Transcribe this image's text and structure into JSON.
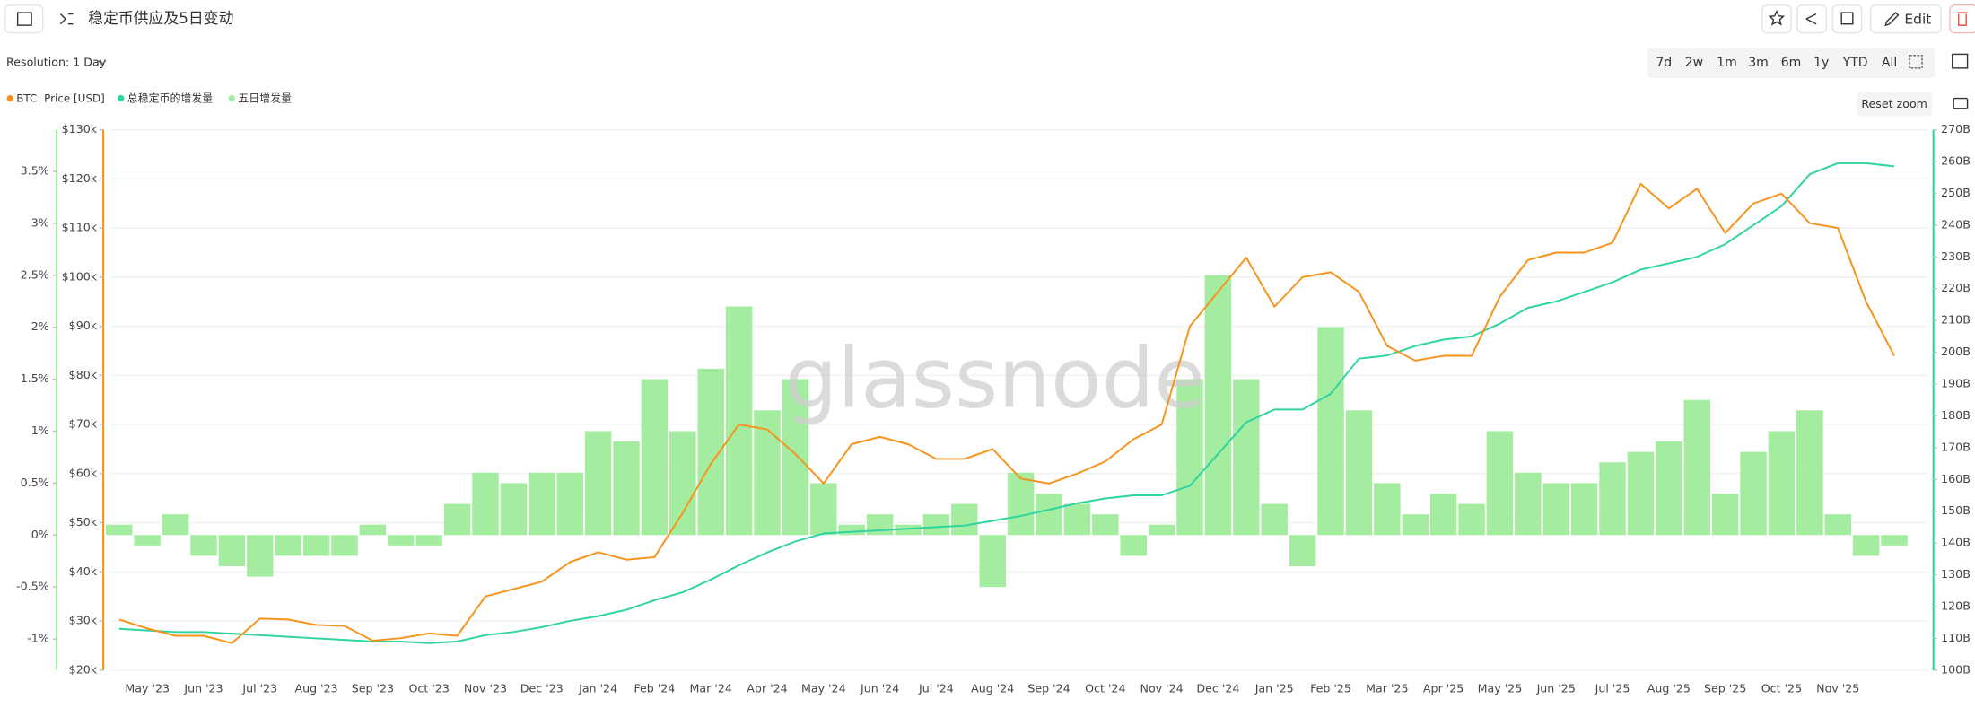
{
  "header": {
    "title": "稳定币供应及5日变动",
    "edit": "Edit",
    "resolution": "Resolution: 1 Day",
    "ranges": [
      "7d",
      "2w",
      "1m",
      "3m",
      "6m",
      "1y",
      "YTD",
      "All"
    ],
    "reset_zoom": "Reset zoom",
    "watermark": "glassnode"
  },
  "chart_data": {
    "type": "combo",
    "grid": true,
    "categories": [
      null,
      "May '23",
      null,
      "Jun '23",
      null,
      "Jul '23",
      null,
      "Aug '23",
      null,
      "Sep '23",
      null,
      "Oct '23",
      null,
      "Nov '23",
      null,
      "Dec '23",
      null,
      "Jan '24",
      null,
      "Feb '24",
      null,
      "Mar '24",
      null,
      "Apr '24",
      null,
      "May '24",
      null,
      "Jun '24",
      null,
      "Jul '24",
      null,
      "Aug '24",
      null,
      "Sep '24",
      null,
      "Oct '24",
      null,
      "Nov '24",
      null,
      "Dec '24",
      null,
      "Jan '25",
      null,
      "Feb '25",
      null,
      "Mar '25",
      null,
      "Apr '25",
      null,
      "May '25",
      null,
      "Jun '25",
      null,
      "Jul '25",
      null,
      "Aug '25",
      null,
      "Sep '25",
      null,
      "Oct '25",
      null,
      "Nov '25",
      null,
      null
    ],
    "ylim": [
      -1.3,
      3.9
    ],
    "yticks": [
      {
        "value": -1,
        "label": "-1%"
      },
      {
        "value": -0.5,
        "label": "-0.5%"
      },
      {
        "value": 0,
        "label": "0%"
      },
      {
        "value": 0.5,
        "label": "0.5%"
      },
      {
        "value": 1,
        "label": "1%"
      },
      {
        "value": 1.5,
        "label": "1.5%"
      },
      {
        "value": 2,
        "label": "2%"
      },
      {
        "value": 2.5,
        "label": "2.5%"
      },
      {
        "value": 3,
        "label": "3%"
      },
      {
        "value": 3.5,
        "label": "3.5%"
      }
    ],
    "y2lim": [
      20000,
      130000
    ],
    "y2ticks": [
      {
        "value": 20000,
        "label": "$20k"
      },
      {
        "value": 30000,
        "label": "$30k"
      },
      {
        "value": 40000,
        "label": "$40k"
      },
      {
        "value": 50000,
        "label": "$50k"
      },
      {
        "value": 60000,
        "label": "$60k"
      },
      {
        "value": 70000,
        "label": "$70k"
      },
      {
        "value": 80000,
        "label": "$80k"
      },
      {
        "value": 90000,
        "label": "$90k"
      },
      {
        "value": 100000,
        "label": "$100k"
      },
      {
        "value": 110000,
        "label": "$110k"
      },
      {
        "value": 120000,
        "label": "$120k"
      },
      {
        "value": 130000,
        "label": "$130k"
      }
    ],
    "y3lim": [
      100,
      270
    ],
    "y3ticks": [
      {
        "value": 100,
        "label": "100B"
      },
      {
        "value": 110,
        "label": "110B"
      },
      {
        "value": 120,
        "label": "120B"
      },
      {
        "value": 130,
        "label": "130B"
      },
      {
        "value": 140,
        "label": "140B"
      },
      {
        "value": 150,
        "label": "150B"
      },
      {
        "value": 160,
        "label": "160B"
      },
      {
        "value": 170,
        "label": "170B"
      },
      {
        "value": 180,
        "label": "180B"
      },
      {
        "value": 190,
        "label": "190B"
      },
      {
        "value": 200,
        "label": "200B"
      },
      {
        "value": 210,
        "label": "210B"
      },
      {
        "value": 220,
        "label": "220B"
      },
      {
        "value": 230,
        "label": "230B"
      },
      {
        "value": 240,
        "label": "240B"
      },
      {
        "value": 250,
        "label": "250B"
      },
      {
        "value": 260,
        "label": "260B"
      },
      {
        "value": 270,
        "label": "270B"
      }
    ],
    "series": [
      {
        "name": "BTC: Price [USD]",
        "type": "line",
        "axis": "y2",
        "color": "#f7931a",
        "values": [
          30300,
          28500,
          27000,
          27000,
          25500,
          30500,
          30300,
          29200,
          29000,
          26000,
          26500,
          27500,
          27000,
          35000,
          36500,
          38000,
          42000,
          44000,
          42500,
          43000,
          52000,
          62000,
          70000,
          69000,
          64000,
          58000,
          66000,
          67500,
          66000,
          63000,
          63000,
          65000,
          59000,
          58000,
          60000,
          62500,
          67000,
          70000,
          90000,
          97000,
          104000,
          94000,
          100000,
          101000,
          97000,
          86000,
          83000,
          84000,
          84000,
          96000,
          103500,
          105000,
          105000,
          107000,
          119000,
          114000,
          118000,
          109000,
          115000,
          117000,
          111000,
          110000,
          95000,
          84000
        ]
      },
      {
        "name": "总稳定币的增发量",
        "type": "line",
        "axis": "y3",
        "color": "#2dd4a0",
        "values": [
          113,
          112.5,
          112,
          112,
          111.5,
          111,
          110.5,
          110,
          109.5,
          109,
          109,
          108.5,
          109,
          111,
          112,
          113.5,
          115.5,
          117,
          119,
          122,
          124.5,
          128.5,
          133,
          137,
          140.5,
          143,
          143.5,
          144,
          144.5,
          145,
          145.5,
          147,
          148.5,
          150.5,
          152.5,
          154,
          155,
          155,
          158,
          168,
          178,
          182,
          182,
          187,
          198,
          199,
          202,
          204,
          205,
          209,
          214,
          216,
          219,
          222,
          226,
          228,
          230,
          234,
          240,
          246,
          256,
          259.5,
          259.5,
          258.5
        ]
      },
      {
        "name": "五日增发量",
        "type": "bar",
        "axis": "y",
        "color": "#a3eca0",
        "values": [
          0.1,
          -0.1,
          0.2,
          -0.2,
          -0.3,
          -0.4,
          -0.2,
          -0.2,
          -0.2,
          0.1,
          -0.1,
          -0.1,
          0.3,
          0.6,
          0.5,
          0.6,
          0.6,
          1.0,
          0.9,
          1.5,
          1.0,
          1.6,
          2.2,
          1.2,
          1.5,
          0.5,
          0.1,
          0.2,
          0.1,
          0.2,
          0.3,
          -0.5,
          0.6,
          0.4,
          0.3,
          0.2,
          -0.2,
          0.1,
          1.5,
          2.5,
          1.5,
          0.3,
          -0.3,
          2.0,
          1.2,
          0.5,
          0.2,
          0.4,
          0.3,
          1.0,
          0.6,
          0.5,
          0.5,
          0.7,
          0.8,
          0.9,
          1.3,
          0.4,
          0.8,
          1.0,
          1.2,
          0.2,
          -0.2,
          -0.1
        ]
      }
    ]
  }
}
